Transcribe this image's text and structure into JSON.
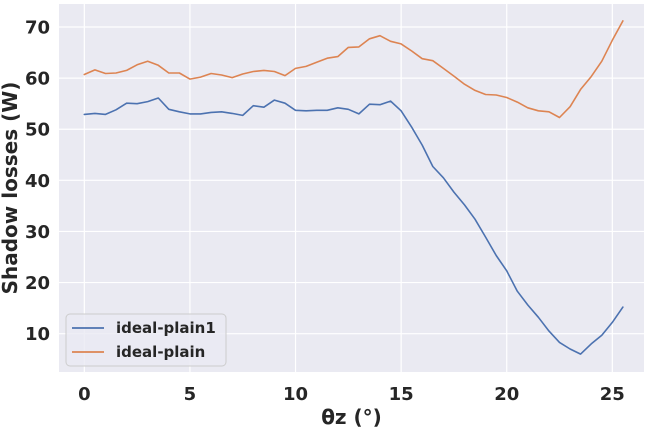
{
  "chart_data": {
    "type": "line",
    "xlabel": "θz (°)",
    "ylabel": "Shadow losses (W)",
    "xlim": [
      -1.2,
      26.5
    ],
    "ylim": [
      2.5,
      74.5
    ],
    "xticks": [
      0,
      5,
      10,
      15,
      20,
      25
    ],
    "yticks": [
      10,
      20,
      30,
      40,
      50,
      60,
      70
    ],
    "grid": true,
    "legend_position": "lower-left",
    "background_color": "#eaeaf2",
    "grid_color": "#ffffff",
    "series": [
      {
        "name": "ideal-plain1",
        "color": "#4c72b0",
        "x": [
          0,
          0.5,
          1,
          1.5,
          2,
          2.5,
          3,
          3.5,
          4,
          4.5,
          5,
          5.5,
          6,
          6.5,
          7,
          7.5,
          8,
          8.5,
          9,
          9.5,
          10,
          10.5,
          11,
          11.5,
          12,
          12.5,
          13,
          13.5,
          14,
          14.5,
          15,
          15.5,
          16,
          16.5,
          17,
          17.5,
          18,
          18.5,
          19,
          19.5,
          20,
          20.5,
          21,
          21.5,
          22,
          22.5,
          23,
          23.5,
          24,
          24.5,
          25,
          25.5
        ],
        "y": [
          52.9,
          53.1,
          52.9,
          53.8,
          55.1,
          55.0,
          55.4,
          56.1,
          53.9,
          53.4,
          53.0,
          53.0,
          53.3,
          53.4,
          53.1,
          52.7,
          54.6,
          54.3,
          55.7,
          55.1,
          53.7,
          53.6,
          53.7,
          53.7,
          54.2,
          53.9,
          53.0,
          54.9,
          54.8,
          55.5,
          53.6,
          50.4,
          46.9,
          42.7,
          40.5,
          37.7,
          35.2,
          32.4,
          28.9,
          25.3,
          22.3,
          18.3,
          15.6,
          13.2,
          10.5,
          8.3,
          7.0,
          6.0,
          8.0,
          9.7,
          12.2,
          15.2
        ]
      },
      {
        "name": "ideal-plain",
        "color": "#dd8452",
        "x": [
          0,
          0.5,
          1,
          1.5,
          2,
          2.5,
          3,
          3.5,
          4,
          4.5,
          5,
          5.5,
          6,
          6.5,
          7,
          7.5,
          8,
          8.5,
          9,
          9.5,
          10,
          10.5,
          11,
          11.5,
          12,
          12.5,
          13,
          13.5,
          14,
          14.5,
          15,
          15.5,
          16,
          16.5,
          17,
          17.5,
          18,
          18.5,
          19,
          19.5,
          20,
          20.5,
          21,
          21.5,
          22,
          22.5,
          23,
          23.5,
          24,
          24.5,
          25,
          25.5
        ],
        "y": [
          60.7,
          61.6,
          60.9,
          61.0,
          61.5,
          62.6,
          63.3,
          62.5,
          61.0,
          61.0,
          59.8,
          60.2,
          60.9,
          60.6,
          60.1,
          60.8,
          61.3,
          61.5,
          61.3,
          60.5,
          61.9,
          62.3,
          63.1,
          63.9,
          64.2,
          66.0,
          66.1,
          67.7,
          68.3,
          67.2,
          66.7,
          65.3,
          63.8,
          63.4,
          61.9,
          60.4,
          58.8,
          57.6,
          56.8,
          56.7,
          56.2,
          55.3,
          54.2,
          53.6,
          53.4,
          52.3,
          54.4,
          57.8,
          60.3,
          63.3,
          67.4,
          71.2
        ]
      }
    ]
  }
}
